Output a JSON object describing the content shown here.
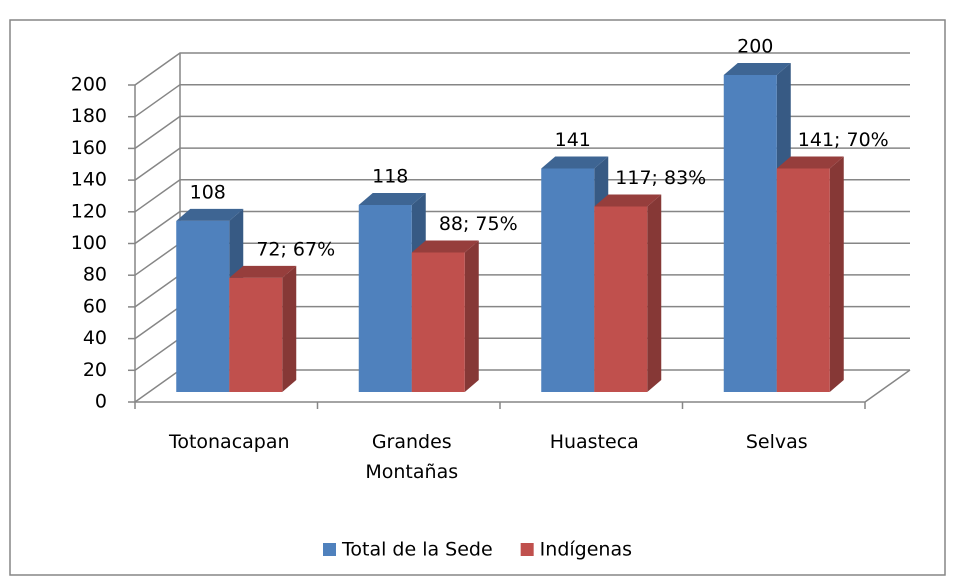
{
  "chart_data": {
    "type": "bar3d",
    "categories": [
      "Totonacapan",
      "Grandes Montañas",
      "Huasteca",
      "Selvas"
    ],
    "series": [
      {
        "name": "Total de la Sede",
        "color": "#4f81bd",
        "values": [
          108,
          118,
          141,
          200
        ]
      },
      {
        "name": "Indígenas",
        "color": "#c0504d",
        "values": [
          72,
          88,
          117,
          141
        ],
        "value_labels": [
          "72;  67%",
          "88; 75%",
          "117; 83%",
          "141; 70%"
        ]
      }
    ],
    "ylim": [
      0,
      200
    ],
    "yticks": [
      0,
      20,
      40,
      60,
      80,
      100,
      120,
      140,
      160,
      180,
      200
    ],
    "grid": true,
    "legend": "bottom"
  }
}
